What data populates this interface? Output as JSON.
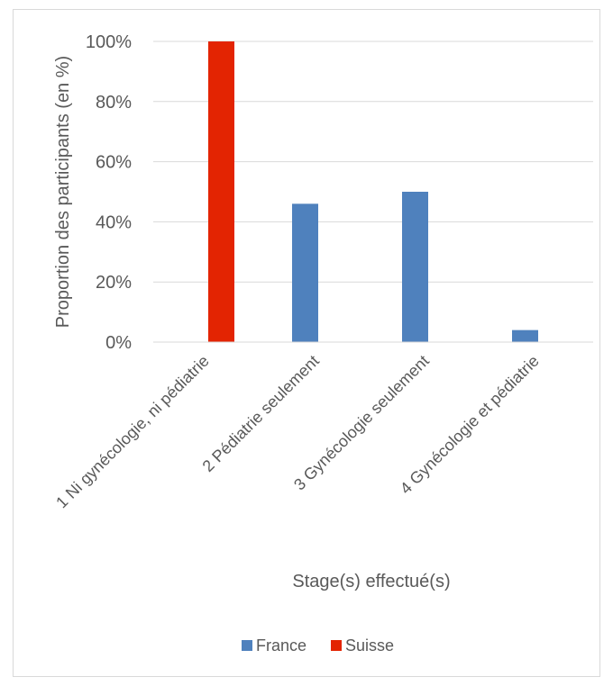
{
  "chart_data": {
    "type": "bar",
    "title": "",
    "xlabel": "Stage(s) effectué(s)",
    "ylabel": "Proportion des participants (en %)",
    "ylim": [
      0,
      100
    ],
    "y_ticks": [
      "0%",
      "20%",
      "40%",
      "60%",
      "80%",
      "100%"
    ],
    "y_tick_values": [
      0,
      20,
      40,
      60,
      80,
      100
    ],
    "grid": true,
    "legend_position": "bottom",
    "categories": [
      "1 Ni gynécologie, ni pédiatrie",
      "2 Pédiatrie seulement",
      "3 Gynécologie seulement",
      "4 Gynécologie et pédiatrie"
    ],
    "series": [
      {
        "name": "France",
        "color": "#4f81bd",
        "values": [
          0,
          46,
          50,
          4
        ]
      },
      {
        "name": "Suisse",
        "color": "#e32402",
        "values": [
          100,
          0,
          0,
          0
        ]
      }
    ]
  }
}
